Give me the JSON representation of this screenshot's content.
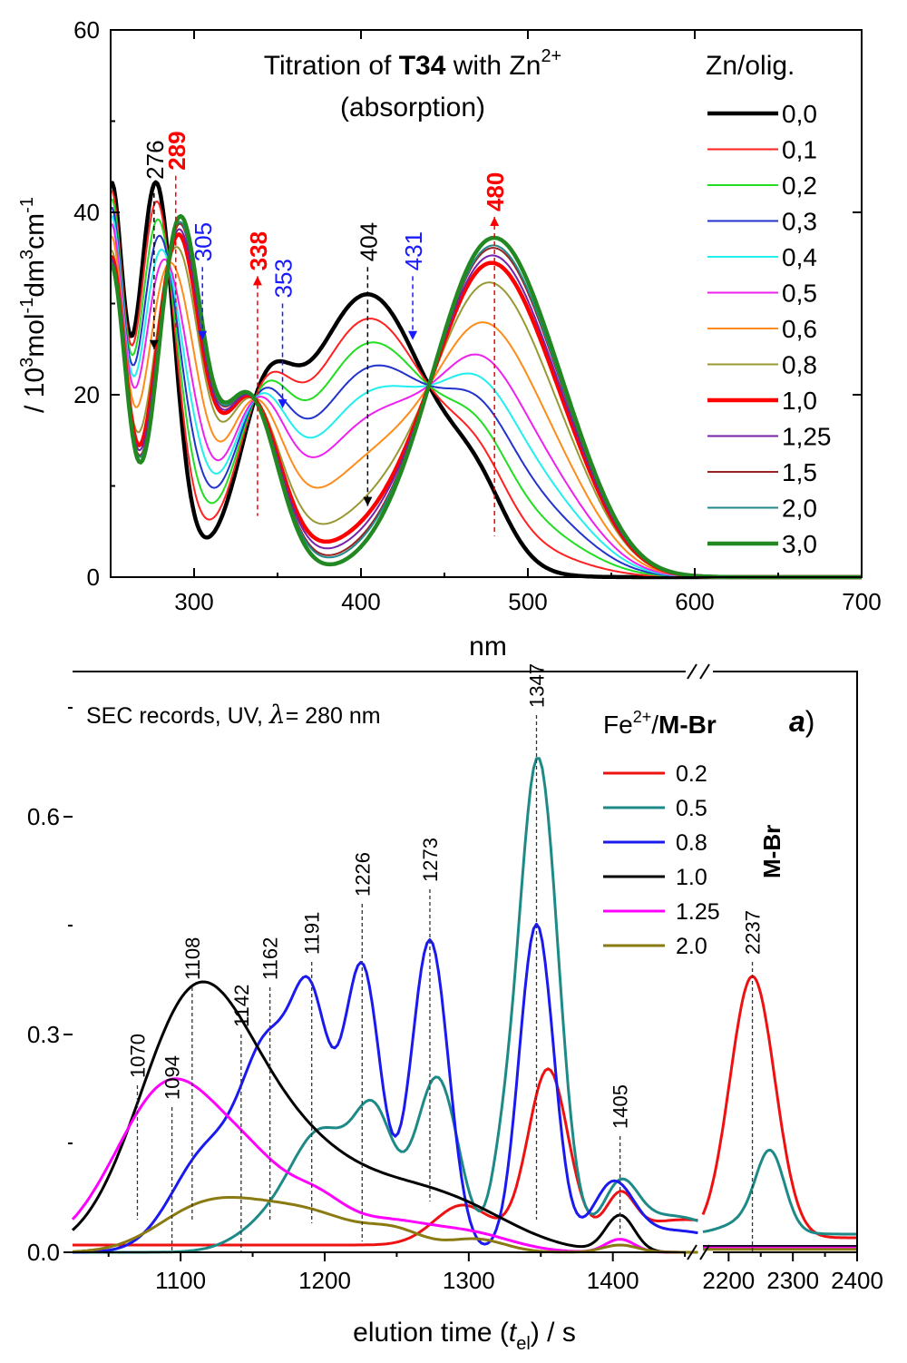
{
  "chart_data": [
    {
      "type": "line",
      "title_prefix": "Titration of ",
      "title_bold": "T34",
      "title_suffix": " with Zn",
      "title_sup": "2+",
      "subtitle": "(absorption)",
      "xlabel": "nm",
      "ylabel_parts": [
        "/ 10",
        "3",
        "mol",
        "-1",
        "dm",
        "3",
        "cm",
        "-1"
      ],
      "xlim": [
        250,
        700
      ],
      "ylim": [
        0,
        60
      ],
      "xticks": [
        300,
        400,
        500,
        600,
        700
      ],
      "xtick_labels": [
        "300",
        "400",
        "500",
        "600",
        "700"
      ],
      "yticks": [
        0,
        20,
        40,
        60
      ],
      "ytick_labels": [
        "0",
        "20",
        "40",
        "60"
      ],
      "legend_title": "Zn/olig.",
      "legend_position": "right",
      "series": [
        {
          "name": "0,0",
          "color": "#000000",
          "width": 4.5,
          "a": 0.0
        },
        {
          "name": "0,1",
          "color": "#ff2020",
          "width": 2,
          "a": 0.1
        },
        {
          "name": "0,2",
          "color": "#22dd22",
          "width": 2,
          "a": 0.2
        },
        {
          "name": "0,3",
          "color": "#2233cc",
          "width": 2,
          "a": 0.3
        },
        {
          "name": "0,4",
          "color": "#22eeee",
          "width": 2,
          "a": 0.4
        },
        {
          "name": "0,5",
          "color": "#ee22ee",
          "width": 2,
          "a": 0.5
        },
        {
          "name": "0,6",
          "color": "#ff8c1a",
          "width": 2,
          "a": 0.65
        },
        {
          "name": "0,8",
          "color": "#999933",
          "width": 2,
          "a": 0.82
        },
        {
          "name": "1,0",
          "color": "#ff0000",
          "width": 4.5,
          "a": 0.9
        },
        {
          "name": "1,25",
          "color": "#7722aa",
          "width": 2,
          "a": 0.93
        },
        {
          "name": "1,5",
          "color": "#992222",
          "width": 2,
          "a": 0.96
        },
        {
          "name": "2,0",
          "color": "#22888a",
          "width": 2,
          "a": 0.97
        },
        {
          "name": "3,0",
          "color": "#228822",
          "width": 4.5,
          "a": 1.0
        }
      ],
      "annotations": [
        {
          "x": 276,
          "label": "276",
          "color": "#000000",
          "bold": false,
          "y_top": 43,
          "y_bottom": 25,
          "arrow": "down"
        },
        {
          "x": 289,
          "label": "289",
          "color": "#ff0000",
          "bold": true,
          "y_top": 44,
          "y_bottom": 27,
          "arrow": "none"
        },
        {
          "x": 305,
          "label": "305",
          "color": "#1a1aff",
          "bold": false,
          "y_top": 34,
          "y_bottom": 26,
          "arrow": "down"
        },
        {
          "x": 338,
          "label": "338",
          "color": "#ff0000",
          "bold": true,
          "y_top": 33,
          "y_bottom": 6.7,
          "arrow": "up"
        },
        {
          "x": 353,
          "label": "353",
          "color": "#1a1aff",
          "bold": false,
          "y_top": 30,
          "y_bottom": 18.5,
          "arrow": "down"
        },
        {
          "x": 404,
          "label": "404",
          "color": "#000000",
          "bold": false,
          "y_top": 34,
          "y_bottom": 7.8,
          "arrow": "down"
        },
        {
          "x": 431,
          "label": "431",
          "color": "#1a1aff",
          "bold": false,
          "y_top": 33,
          "y_bottom": 26,
          "arrow": "down"
        },
        {
          "x": 480,
          "label": "480",
          "color": "#ff0000",
          "bold": true,
          "y_top": 39.5,
          "y_bottom": 4.5,
          "arrow": "up"
        }
      ]
    },
    {
      "type": "line",
      "title": "SEC records, UV, ",
      "title_lambda": "λ",
      "title_suffix": "= 280 nm",
      "panel_label": "a",
      "xlabel_parts": [
        "elution time (",
        "t",
        "el",
        ") / s"
      ],
      "x_segments": [
        [
          1025,
          1460
        ],
        [
          2160,
          2400
        ]
      ],
      "ylim": [
        0,
        0.8
      ],
      "xticks": [
        1100,
        1200,
        1300,
        1400,
        2200,
        2300,
        2400
      ],
      "xtick_labels": [
        "1100",
        "1200",
        "1300",
        "1400",
        "2200",
        "2300",
        "2400"
      ],
      "yticks": [
        0.0,
        0.3,
        0.6
      ],
      "ytick_labels": [
        "0.0",
        "0.3",
        "0.6"
      ],
      "legend_title_parts": [
        "Fe",
        "2+",
        "/",
        "M-Br"
      ],
      "legend_position": "top-right",
      "mbr_label": "M-Br",
      "series": [
        {
          "name": "0.2",
          "color": "#ee1111",
          "peaks": [
            [
              1296,
              0.055,
              20
            ],
            [
              1355,
              0.24,
              14
            ],
            [
              1405,
              0.055,
              10
            ],
            [
              1450,
              0.035,
              40
            ]
          ],
          "base": 0.01,
          "peaks2": [
            [
              2237,
              0.36,
              35
            ]
          ],
          "base2": 0.02
        },
        {
          "name": "0.5",
          "color": "#1e8a88",
          "peaks": [
            [
              1170,
              0.05,
              25
            ],
            [
              1200,
              0.14,
              20
            ],
            [
              1235,
              0.17,
              14
            ],
            [
              1278,
              0.24,
              15
            ],
            [
              1322,
              0.06,
              8
            ],
            [
              1348,
              0.68,
              14
            ],
            [
              1405,
              0.07,
              12
            ],
            [
              1440,
              0.05,
              35
            ]
          ],
          "base": 0.0,
          "peaks2": [
            [
              2237,
              0.02,
              40
            ],
            [
              2265,
              0.1,
              22
            ]
          ],
          "base2": 0.025
        },
        {
          "name": "0.8",
          "color": "#1a1aee",
          "peaks": [
            [
              1120,
              0.14,
              25
            ],
            [
              1162,
              0.25,
              18
            ],
            [
              1191,
              0.29,
              13
            ],
            [
              1226,
              0.39,
              13
            ],
            [
              1273,
              0.43,
              13
            ],
            [
              1347,
              0.45,
              12
            ],
            [
              1400,
              0.08,
              14
            ],
            [
              1440,
              0.03,
              40
            ]
          ],
          "base": 0.0,
          "peaks2": [],
          "base2": 0.008
        },
        {
          "name": "1.0",
          "color": "#000000",
          "peaks": [
            [
              1108,
              0.33,
              38
            ],
            [
              1170,
              0.12,
              40
            ],
            [
              1240,
              0.07,
              45
            ],
            [
              1300,
              0.04,
              40
            ],
            [
              1405,
              0.05,
              10
            ]
          ],
          "base": 0.0,
          "peaks2": [],
          "base2": 0.008
        },
        {
          "name": "1.25",
          "color": "#ff00ff",
          "peaks": [
            [
              1094,
              0.235,
              38
            ],
            [
              1155,
              0.07,
              25
            ],
            [
              1195,
              0.05,
              20
            ],
            [
              1240,
              0.04,
              30
            ],
            [
              1300,
              0.025,
              30
            ],
            [
              1405,
              0.018,
              10
            ]
          ],
          "base": 0.0,
          "peaks2": [],
          "base2": 0.006
        },
        {
          "name": "2.0",
          "color": "#8a7a12",
          "peaks": [
            [
              1108,
              0.04,
              30
            ],
            [
              1150,
              0.05,
              35
            ],
            [
              1200,
              0.035,
              30
            ],
            [
              1250,
              0.025,
              20
            ],
            [
              1305,
              0.018,
              20
            ],
            [
              1405,
              0.01,
              12
            ]
          ],
          "base": 0.0,
          "peaks2": [],
          "base2": 0.004
        }
      ],
      "annotations": [
        {
          "x": 1070,
          "label": "1070",
          "y_top": 0.23,
          "y_bottom": 0.045
        },
        {
          "x": 1094,
          "label": "1094",
          "y_top": 0.2,
          "y_bottom": 0.0
        },
        {
          "x": 1108,
          "label": "1108",
          "y_top": 0.365,
          "y_bottom": 0.045
        },
        {
          "x": 1142,
          "label": "1142",
          "y_top": 0.3,
          "y_bottom": 0.0
        },
        {
          "x": 1162,
          "label": "1162",
          "y_top": 0.365,
          "y_bottom": 0.045
        },
        {
          "x": 1191,
          "label": "1191",
          "y_top": 0.4,
          "y_bottom": 0.04
        },
        {
          "x": 1226,
          "label": "1226",
          "y_top": 0.48,
          "y_bottom": 0.015
        },
        {
          "x": 1273,
          "label": "1273",
          "y_top": 0.5,
          "y_bottom": 0.07
        },
        {
          "x": 1347,
          "label": "1347",
          "y_top": 0.74,
          "y_bottom": 0.045
        },
        {
          "x": 1405,
          "label": "1405",
          "y_top": 0.16,
          "y_bottom": 0.025
        },
        {
          "x": 2237,
          "label": "2237",
          "y_top": 0.4,
          "y_bottom": 0.0
        }
      ]
    }
  ]
}
